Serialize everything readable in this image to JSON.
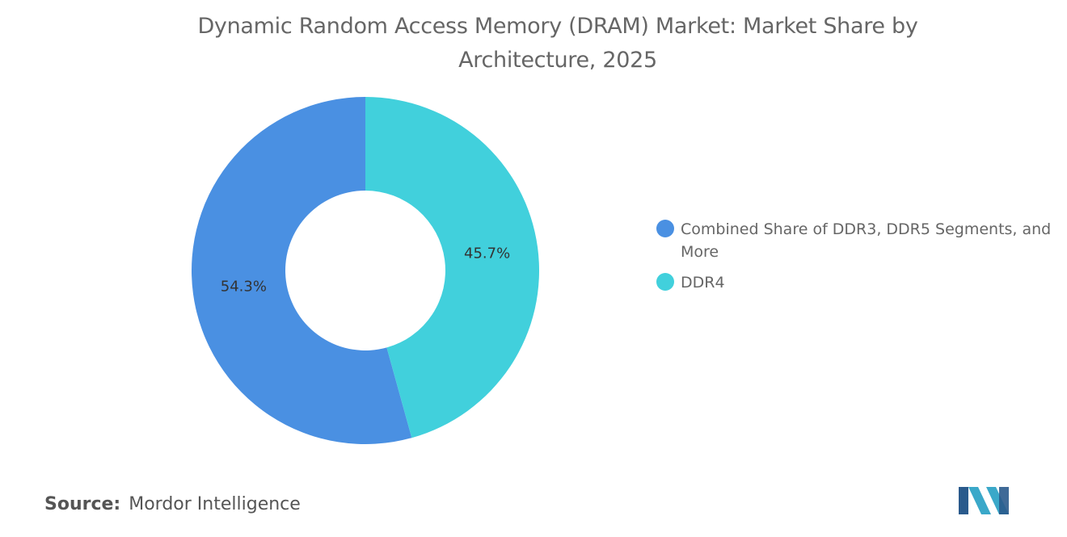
{
  "chart_data": {
    "type": "donut",
    "title": "Dynamic Random Access Memory (DRAM) Market: Market Share by Architecture, 2025",
    "categories": [
      "Combined Share of DDR3, DDR5 Segments, and More",
      "DDR4"
    ],
    "values": [
      54.3,
      45.7
    ],
    "value_labels": [
      "54.3%",
      "45.7%"
    ],
    "colors": [
      "#4a90e2",
      "#41d0dc"
    ],
    "legend": "right",
    "source_label": "Source:",
    "source": "Mordor Intelligence"
  }
}
